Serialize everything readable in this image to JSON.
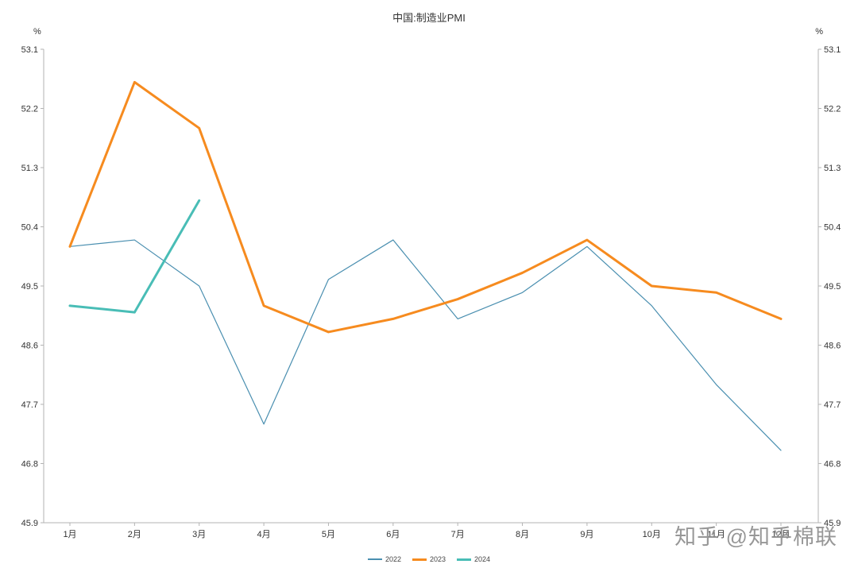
{
  "title": "中国:制造业PMI",
  "y_unit_left": "%",
  "y_unit_right": "%",
  "watermark": "知乎 @知乎棉联",
  "chart_data": {
    "type": "line",
    "title": "中国:制造业PMI",
    "categories": [
      "1月",
      "2月",
      "3月",
      "4月",
      "5月",
      "6月",
      "7月",
      "8月",
      "9月",
      "10月",
      "11月",
      "12月"
    ],
    "ylabel": "%",
    "ylim": [
      45.9,
      53.1
    ],
    "yticks": [
      45.9,
      46.8,
      47.7,
      48.6,
      49.5,
      50.4,
      51.3,
      52.2,
      53.1
    ],
    "grid": false,
    "legend_position": "bottom",
    "series": [
      {
        "name": "2022",
        "color": "#4a8fb0",
        "width": 1.2,
        "values": [
          50.1,
          50.2,
          49.5,
          47.4,
          49.6,
          50.2,
          49.0,
          49.4,
          50.1,
          49.2,
          48.0,
          47.0
        ]
      },
      {
        "name": "2023",
        "color": "#f68b1f",
        "width": 3,
        "values": [
          50.1,
          52.6,
          51.9,
          49.2,
          48.8,
          49.0,
          49.3,
          49.7,
          50.2,
          49.5,
          49.4,
          49.0
        ]
      },
      {
        "name": "2024",
        "color": "#49bdb6",
        "width": 3,
        "values": [
          49.2,
          49.1,
          50.8
        ]
      }
    ]
  }
}
